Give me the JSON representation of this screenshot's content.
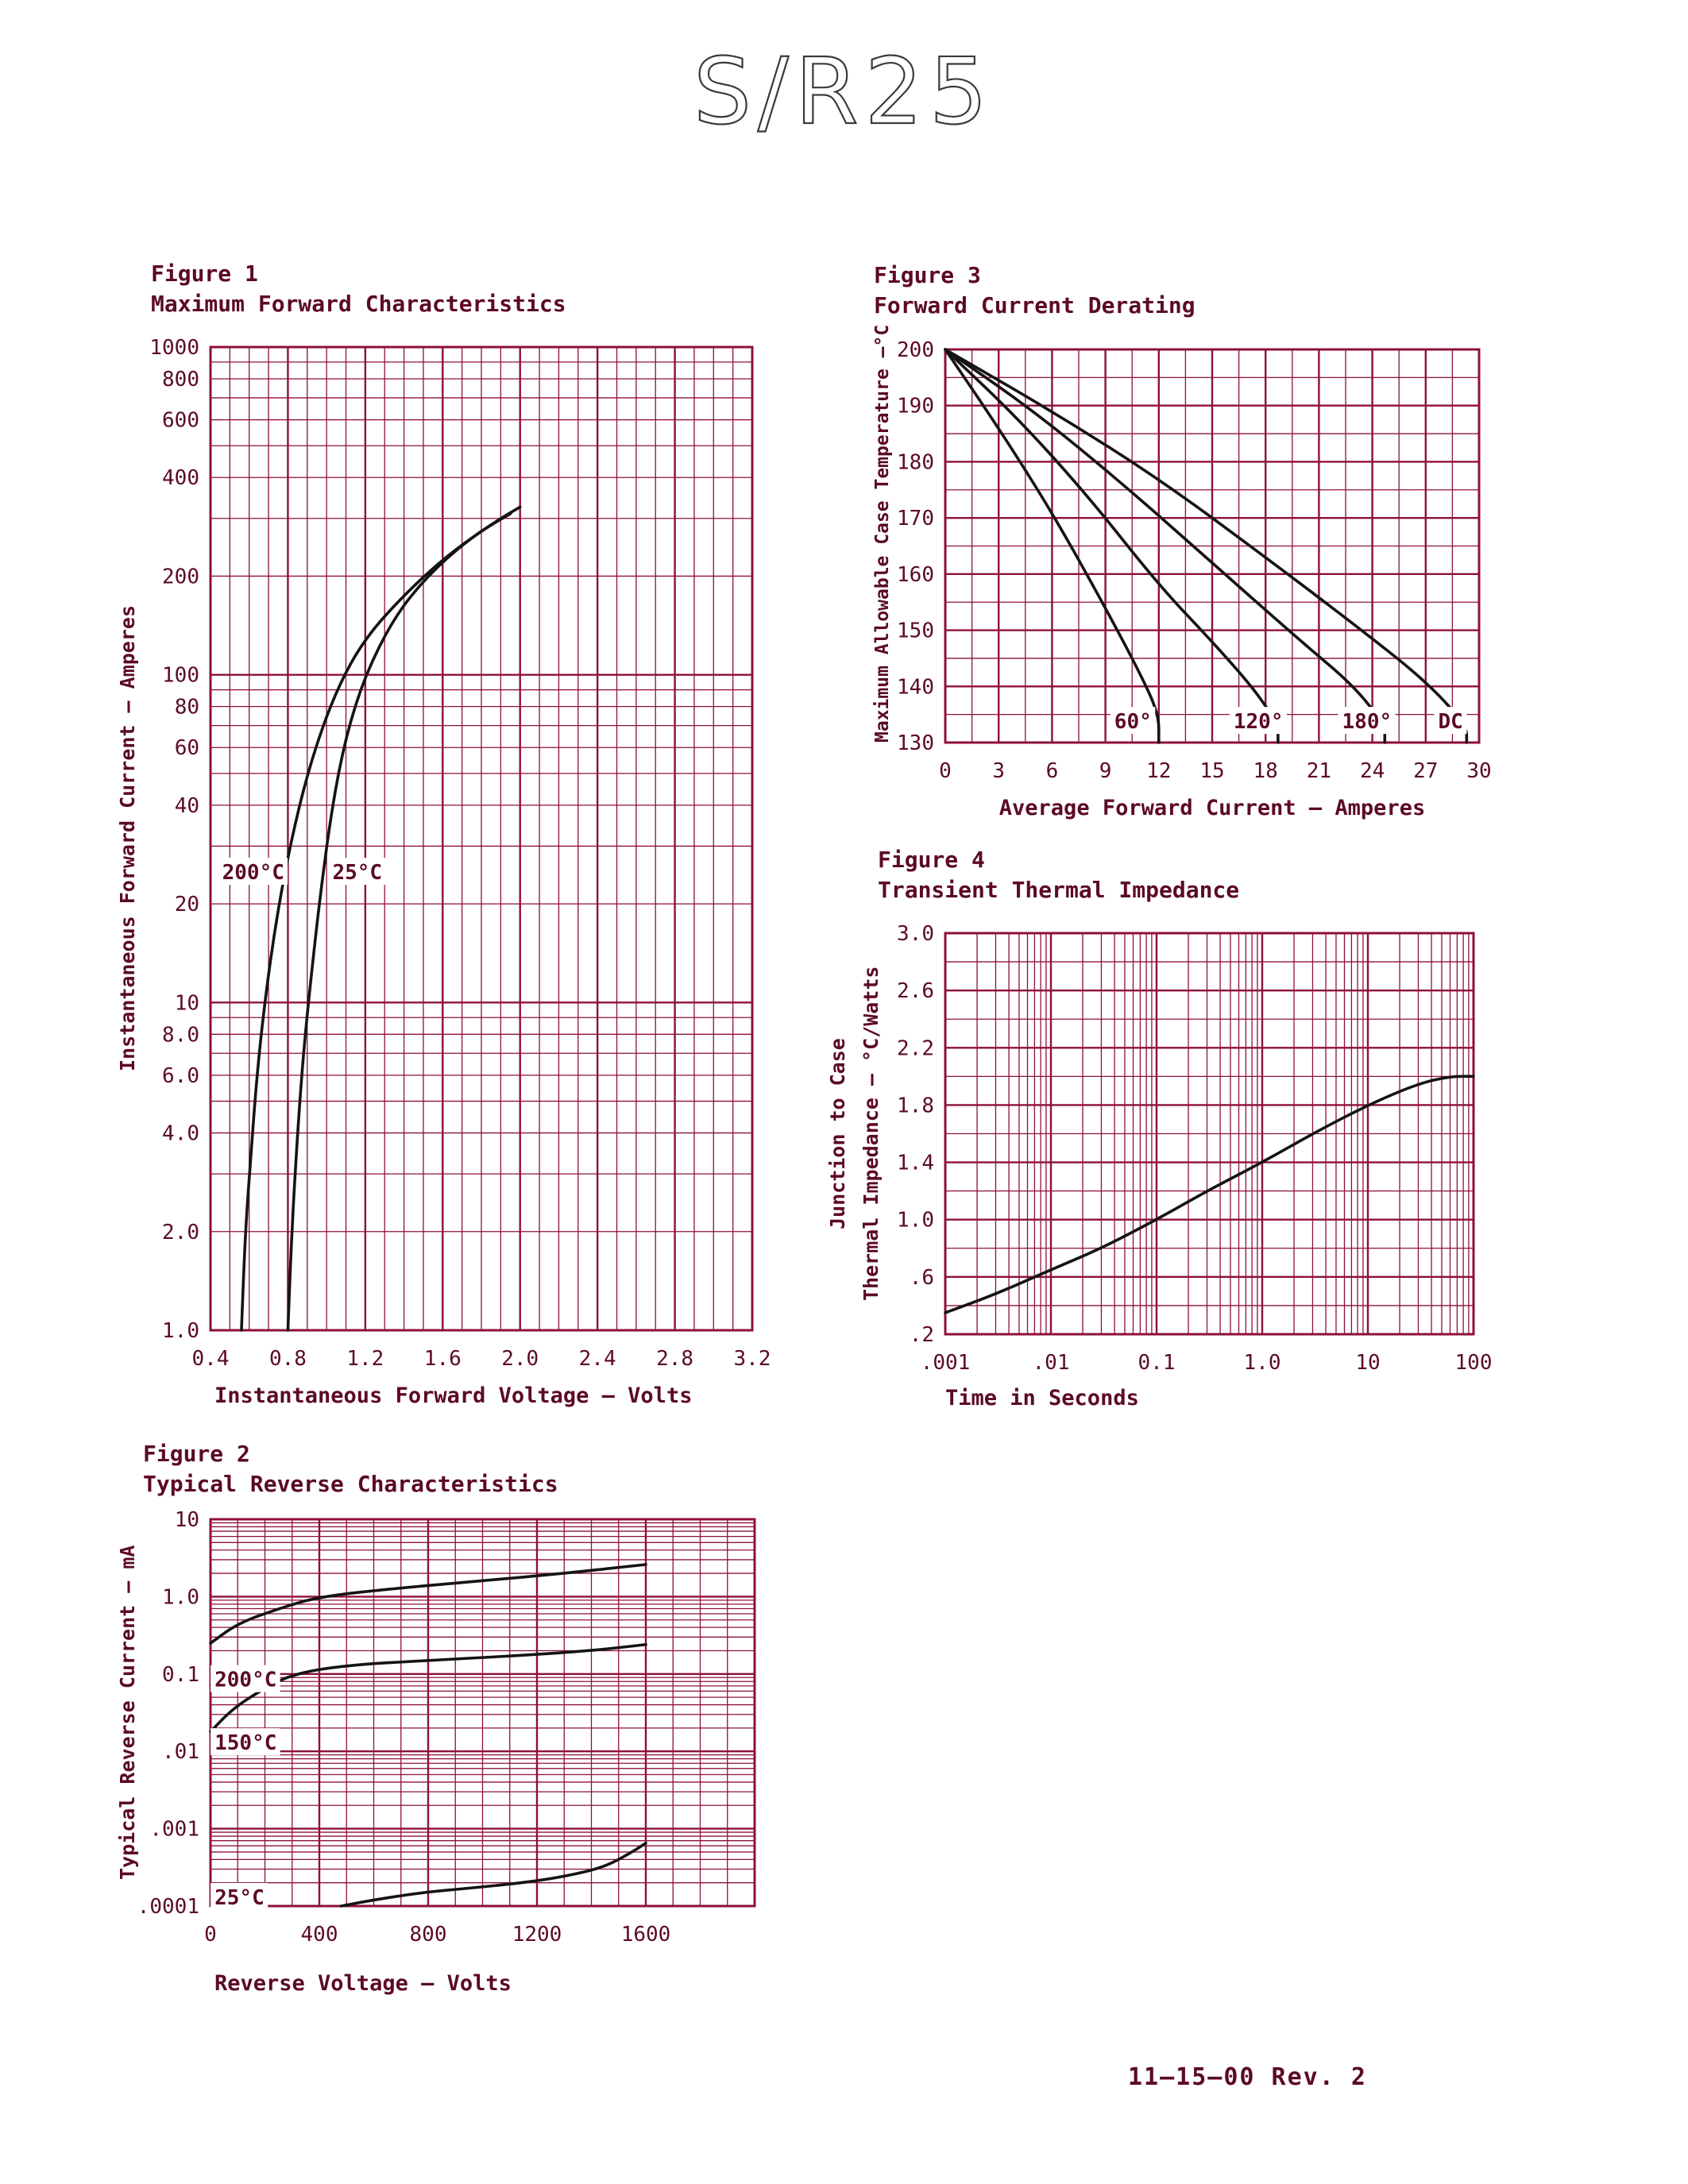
{
  "page": {
    "title": "S/R25",
    "footer": "11—15—00  Rev. 2"
  },
  "colors": {
    "grid": "#8e1038",
    "text": "#5c0a23",
    "curve": "#141414",
    "title_stroke": "#3a3a3a",
    "background": "#ffffff"
  },
  "chart_data": [
    {
      "figure_label": "Figure 1",
      "title": "Maximum Forward Characteristics",
      "type": "line",
      "grid": true,
      "x_axis": {
        "label": "Instantaneous Forward Voltage — Volts",
        "scale": "linear",
        "min": 0.4,
        "max": 3.2,
        "ticks": [
          0.4,
          0.8,
          1.2,
          1.6,
          2.0,
          2.4,
          2.8,
          3.2
        ],
        "tick_labels": [
          "0.4",
          "0.8",
          "1.2",
          "1.6",
          "2.0",
          "2.4",
          "2.8",
          "3.2"
        ],
        "minor_divisions": 4
      },
      "y_axis": {
        "label": "Instantaneous Forward Current — Amperes",
        "scale": "log",
        "min": 1,
        "max": 1000,
        "ticks": [
          1,
          2,
          4,
          6,
          8,
          10,
          20,
          40,
          60,
          80,
          100,
          200,
          400,
          600,
          800,
          1000
        ],
        "tick_labels": [
          "1.0",
          "2.0",
          "4.0",
          "6.0",
          "8.0",
          "10",
          "20",
          "40",
          "60",
          "80",
          "100",
          "200",
          "400",
          "600",
          "800",
          "1000"
        ]
      },
      "series": [
        {
          "name": "200°C",
          "label_pos": [
            0.46,
            25
          ],
          "points": [
            [
              0.56,
              1
            ],
            [
              0.58,
              2
            ],
            [
              0.61,
              3.5
            ],
            [
              0.64,
              6
            ],
            [
              0.68,
              10
            ],
            [
              0.74,
              18
            ],
            [
              0.82,
              32
            ],
            [
              0.92,
              55
            ],
            [
              1.05,
              90
            ],
            [
              1.2,
              130
            ],
            [
              1.42,
              180
            ],
            [
              1.62,
              230
            ],
            [
              1.82,
              280
            ],
            [
              1.95,
              310
            ]
          ]
        },
        {
          "name": "25°C",
          "label_pos": [
            1.03,
            25
          ],
          "points": [
            [
              0.8,
              1
            ],
            [
              0.82,
              2
            ],
            [
              0.85,
              4
            ],
            [
              0.88,
              7
            ],
            [
              0.92,
              12
            ],
            [
              0.97,
              22
            ],
            [
              1.03,
              40
            ],
            [
              1.1,
              65
            ],
            [
              1.2,
              100
            ],
            [
              1.35,
              150
            ],
            [
              1.52,
              200
            ],
            [
              1.72,
              255
            ],
            [
              1.9,
              300
            ],
            [
              2.0,
              325
            ]
          ]
        }
      ]
    },
    {
      "figure_label": "Figure 2",
      "title": "Typical Reverse Characteristics",
      "type": "line",
      "grid": true,
      "x_axis": {
        "label": "Reverse Voltage — Volts",
        "scale": "linear",
        "min": 0,
        "max": 2000,
        "ticks": [
          0,
          400,
          800,
          1200,
          1600,
          2000
        ],
        "tick_labels": [
          "0",
          "400",
          "800",
          "1200",
          "1600",
          ""
        ],
        "minor_divisions": 4
      },
      "y_axis": {
        "label": "Typical Reverse Current — mA",
        "scale": "log",
        "min": 0.0001,
        "max": 10,
        "ticks": [
          10,
          1,
          0.1,
          0.01,
          0.001,
          0.0001
        ],
        "tick_labels": [
          "10",
          "1.0",
          "0.1",
          ".01",
          ".001",
          ".0001"
        ]
      },
      "series": [
        {
          "name": "200°C",
          "label_pos": [
            15,
            0.085
          ],
          "points": [
            [
              0,
              0.25
            ],
            [
              100,
              0.45
            ],
            [
              250,
              0.7
            ],
            [
              400,
              1.0
            ],
            [
              700,
              1.3
            ],
            [
              1000,
              1.6
            ],
            [
              1300,
              2.0
            ],
            [
              1600,
              2.6
            ]
          ]
        },
        {
          "name": "150°C",
          "label_pos": [
            15,
            0.013
          ],
          "points": [
            [
              0,
              0.018
            ],
            [
              80,
              0.035
            ],
            [
              180,
              0.06
            ],
            [
              300,
              0.1
            ],
            [
              500,
              0.13
            ],
            [
              800,
              0.15
            ],
            [
              1100,
              0.17
            ],
            [
              1400,
              0.2
            ],
            [
              1600,
              0.24
            ]
          ]
        },
        {
          "name": "25°C",
          "label_pos": [
            15,
            0.00013
          ],
          "points": [
            [
              480,
              0.0001
            ],
            [
              600,
              0.00012
            ],
            [
              780,
              0.00015
            ],
            [
              950,
              0.00017
            ],
            [
              1150,
              0.0002
            ],
            [
              1300,
              0.00024
            ],
            [
              1450,
              0.00032
            ],
            [
              1550,
              0.0005
            ],
            [
              1600,
              0.00065
            ]
          ]
        }
      ]
    },
    {
      "figure_label": "Figure 3",
      "title": "Forward Current Derating",
      "type": "line",
      "grid": true,
      "x_axis": {
        "label": "Average Forward Current — Amperes",
        "scale": "linear",
        "min": 0,
        "max": 30,
        "ticks": [
          0,
          3,
          6,
          9,
          12,
          15,
          18,
          21,
          24,
          27,
          30
        ],
        "tick_labels": [
          "0",
          "3",
          "6",
          "9",
          "12",
          "15",
          "18",
          "21",
          "24",
          "27",
          "30"
        ],
        "minor_divisions": 2
      },
      "y_axis": {
        "label": "Maximum Allowable Case Temperature —°C",
        "scale": "linear",
        "min": 130,
        "max": 200,
        "ticks": [
          130,
          140,
          150,
          160,
          170,
          180,
          190,
          200
        ],
        "tick_labels": [
          "130",
          "140",
          "150",
          "160",
          "170",
          "180",
          "190",
          "200"
        ],
        "minor_divisions": 2
      },
      "series": [
        {
          "name": "60°",
          "label_pos": [
            9.5,
            133.8
          ],
          "points": [
            [
              0,
              200
            ],
            [
              3,
              186
            ],
            [
              6,
              171
            ],
            [
              9,
              154
            ],
            [
              11,
              142
            ],
            [
              12,
              135
            ],
            [
              12,
              130
            ]
          ]
        },
        {
          "name": "120°",
          "label_pos": [
            16.2,
            133.8
          ],
          "points": [
            [
              0,
              200
            ],
            [
              4,
              188
            ],
            [
              8,
              174
            ],
            [
              12,
              158
            ],
            [
              15,
              148
            ],
            [
              17.5,
              139
            ],
            [
              18.7,
              133
            ],
            [
              18.7,
              130
            ]
          ]
        },
        {
          "name": "180°",
          "label_pos": [
            22.3,
            133.8
          ],
          "points": [
            [
              0,
              200
            ],
            [
              5,
              189
            ],
            [
              10,
              176
            ],
            [
              15,
              162
            ],
            [
              20,
              148
            ],
            [
              23,
              140
            ],
            [
              24.7,
              133
            ],
            [
              24.7,
              130
            ]
          ]
        },
        {
          "name": "DC",
          "label_pos": [
            27.7,
            133.8
          ],
          "points": [
            [
              0,
              200
            ],
            [
              6,
              189
            ],
            [
              12,
              177
            ],
            [
              18,
              163
            ],
            [
              23,
              151
            ],
            [
              27,
              141
            ],
            [
              29.3,
              133
            ],
            [
              29.3,
              130
            ]
          ]
        }
      ]
    },
    {
      "figure_label": "Figure 4",
      "title": "Transient Thermal Impedance",
      "type": "line",
      "grid": true,
      "x_axis": {
        "label": "Time in Seconds",
        "scale": "log",
        "min": 0.001,
        "max": 100,
        "ticks": [
          0.001,
          0.01,
          0.1,
          1,
          10,
          100
        ],
        "tick_labels": [
          ".001",
          ".01",
          "0.1",
          "1.0",
          "10",
          "100"
        ]
      },
      "y_axis": {
        "label": "Junction to Case",
        "label2": "Thermal Impedance — °C/Watts",
        "scale": "linear",
        "min": 0.2,
        "max": 3.0,
        "ticks": [
          0.2,
          0.6,
          1.0,
          1.4,
          1.8,
          2.2,
          2.6,
          3.0
        ],
        "tick_labels": [
          ".2",
          ".6",
          "1.0",
          "1.4",
          "1.8",
          "2.2",
          "2.6",
          "3.0"
        ],
        "minor_divisions": 2
      },
      "series": [
        {
          "name": "thermal-impedance",
          "points": [
            [
              0.001,
              0.35
            ],
            [
              0.003,
              0.48
            ],
            [
              0.01,
              0.65
            ],
            [
              0.03,
              0.8
            ],
            [
              0.1,
              1.0
            ],
            [
              0.3,
              1.2
            ],
            [
              1,
              1.4
            ],
            [
              3,
              1.6
            ],
            [
              10,
              1.8
            ],
            [
              30,
              1.95
            ],
            [
              60,
              2.0
            ],
            [
              100,
              2.0
            ]
          ]
        }
      ]
    }
  ]
}
